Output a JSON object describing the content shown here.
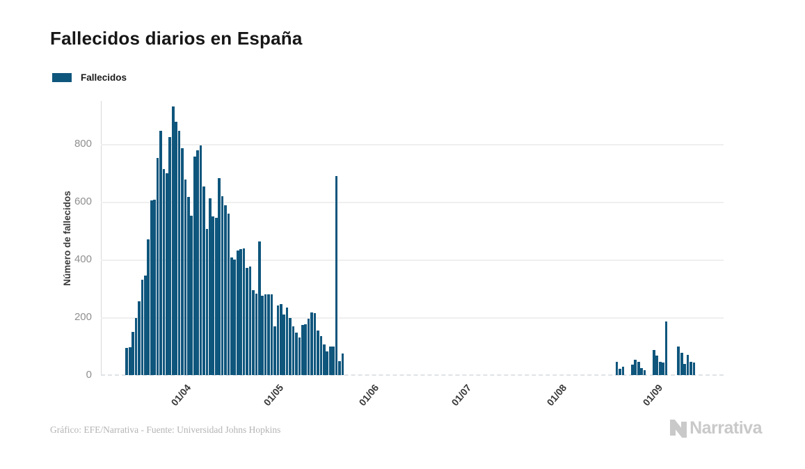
{
  "chart_data": {
    "type": "bar",
    "title": "Fallecidos diarios en España",
    "legend": [
      "Fallecidos"
    ],
    "ylabel": "Número de fallecidos",
    "xlabel": "",
    "bar_color": "#0F567D",
    "background_color": "#ffffff",
    "grid": "horizontal",
    "legend_position": "top-left",
    "ylim": [
      0,
      950
    ],
    "y_ticks": [
      0,
      200,
      400,
      600,
      800
    ],
    "x_tick_labels": [
      "01/04",
      "01/05",
      "01/06",
      "01/07",
      "01/08",
      "01/09"
    ],
    "x_ticks": [
      {
        "label": "01/04",
        "day": 23
      },
      {
        "label": "01/05",
        "day": 53
      },
      {
        "label": "01/06",
        "day": 84
      },
      {
        "label": "01/07",
        "day": 114
      },
      {
        "label": "01/08",
        "day": 145
      },
      {
        "label": "01/09",
        "day": 176
      }
    ],
    "x_axis": {
      "start_date": "09/03",
      "days_total": 202
    },
    "bars": [
      {
        "day": 8,
        "date": "17/03",
        "v": 95
      },
      {
        "day": 9,
        "date": "18/03",
        "v": 97
      },
      {
        "day": 10,
        "date": "19/03",
        "v": 150
      },
      {
        "day": 11,
        "date": "20/03",
        "v": 198
      },
      {
        "day": 12,
        "date": "21/03",
        "v": 255
      },
      {
        "day": 13,
        "date": "22/03",
        "v": 330
      },
      {
        "day": 14,
        "date": "23/03",
        "v": 345
      },
      {
        "day": 15,
        "date": "24/03",
        "v": 470
      },
      {
        "day": 16,
        "date": "25/03",
        "v": 605
      },
      {
        "day": 17,
        "date": "26/03",
        "v": 608
      },
      {
        "day": 18,
        "date": "27/03",
        "v": 753
      },
      {
        "day": 19,
        "date": "28/03",
        "v": 846
      },
      {
        "day": 20,
        "date": "29/03",
        "v": 713
      },
      {
        "day": 21,
        "date": "30/03",
        "v": 700
      },
      {
        "day": 22,
        "date": "31/03",
        "v": 825
      },
      {
        "day": 23,
        "date": "01/04",
        "v": 930
      },
      {
        "day": 24,
        "date": "02/04",
        "v": 878
      },
      {
        "day": 25,
        "date": "03/04",
        "v": 846
      },
      {
        "day": 26,
        "date": "04/04",
        "v": 786
      },
      {
        "day": 27,
        "date": "05/04",
        "v": 677
      },
      {
        "day": 28,
        "date": "06/04",
        "v": 617
      },
      {
        "day": 29,
        "date": "07/04",
        "v": 552
      },
      {
        "day": 30,
        "date": "08/04",
        "v": 758
      },
      {
        "day": 31,
        "date": "09/04",
        "v": 780
      },
      {
        "day": 32,
        "date": "10/04",
        "v": 795
      },
      {
        "day": 33,
        "date": "11/04",
        "v": 653
      },
      {
        "day": 34,
        "date": "12/04",
        "v": 506
      },
      {
        "day": 35,
        "date": "13/04",
        "v": 612
      },
      {
        "day": 36,
        "date": "14/04",
        "v": 550
      },
      {
        "day": 37,
        "date": "15/04",
        "v": 545
      },
      {
        "day": 38,
        "date": "16/04",
        "v": 682
      },
      {
        "day": 39,
        "date": "17/04",
        "v": 620
      },
      {
        "day": 40,
        "date": "18/04",
        "v": 588
      },
      {
        "day": 41,
        "date": "19/04",
        "v": 560
      },
      {
        "day": 42,
        "date": "20/04",
        "v": 407
      },
      {
        "day": 43,
        "date": "21/04",
        "v": 400
      },
      {
        "day": 44,
        "date": "22/04",
        "v": 432
      },
      {
        "day": 45,
        "date": "23/04",
        "v": 436
      },
      {
        "day": 46,
        "date": "24/04",
        "v": 440
      },
      {
        "day": 47,
        "date": "25/04",
        "v": 371
      },
      {
        "day": 48,
        "date": "26/04",
        "v": 375
      },
      {
        "day": 49,
        "date": "27/04",
        "v": 295
      },
      {
        "day": 50,
        "date": "28/04",
        "v": 283
      },
      {
        "day": 51,
        "date": "29/04",
        "v": 464
      },
      {
        "day": 52,
        "date": "30/04",
        "v": 275
      },
      {
        "day": 53,
        "date": "01/05",
        "v": 279
      },
      {
        "day": 54,
        "date": "02/05",
        "v": 279
      },
      {
        "day": 55,
        "date": "03/05",
        "v": 280
      },
      {
        "day": 56,
        "date": "04/05",
        "v": 168
      },
      {
        "day": 57,
        "date": "05/05",
        "v": 242
      },
      {
        "day": 58,
        "date": "06/05",
        "v": 245
      },
      {
        "day": 59,
        "date": "07/05",
        "v": 210
      },
      {
        "day": 60,
        "date": "08/05",
        "v": 234
      },
      {
        "day": 61,
        "date": "09/05",
        "v": 198
      },
      {
        "day": 62,
        "date": "10/05",
        "v": 170
      },
      {
        "day": 63,
        "date": "11/05",
        "v": 148
      },
      {
        "day": 64,
        "date": "12/05",
        "v": 130
      },
      {
        "day": 65,
        "date": "13/05",
        "v": 174
      },
      {
        "day": 66,
        "date": "14/05",
        "v": 176
      },
      {
        "day": 67,
        "date": "15/05",
        "v": 195
      },
      {
        "day": 68,
        "date": "16/05",
        "v": 218
      },
      {
        "day": 69,
        "date": "17/05",
        "v": 215
      },
      {
        "day": 70,
        "date": "18/05",
        "v": 155
      },
      {
        "day": 71,
        "date": "19/05",
        "v": 134
      },
      {
        "day": 72,
        "date": "20/05",
        "v": 105
      },
      {
        "day": 73,
        "date": "21/05",
        "v": 81
      },
      {
        "day": 74,
        "date": "22/05",
        "v": 100
      },
      {
        "day": 75,
        "date": "23/05",
        "v": 99
      },
      {
        "day": 76,
        "date": "24/05",
        "v": 690
      },
      {
        "day": 77,
        "date": "25/05",
        "v": 49
      },
      {
        "day": 78,
        "date": "26/05",
        "v": 75
      },
      {
        "day": 167,
        "date": "23/08",
        "v": 46
      },
      {
        "day": 168,
        "date": "24/08",
        "v": 22
      },
      {
        "day": 169,
        "date": "25/08",
        "v": 28
      },
      {
        "day": 172,
        "date": "28/08",
        "v": 36
      },
      {
        "day": 173,
        "date": "29/08",
        "v": 54
      },
      {
        "day": 174,
        "date": "30/08",
        "v": 47
      },
      {
        "day": 175,
        "date": "31/08",
        "v": 23
      },
      {
        "day": 176,
        "date": "01/09",
        "v": 18
      },
      {
        "day": 179,
        "date": "04/09",
        "v": 86
      },
      {
        "day": 180,
        "date": "05/09",
        "v": 67
      },
      {
        "day": 181,
        "date": "06/09",
        "v": 47
      },
      {
        "day": 182,
        "date": "07/09",
        "v": 44
      },
      {
        "day": 183,
        "date": "08/09",
        "v": 185
      },
      {
        "day": 187,
        "date": "12/09",
        "v": 98
      },
      {
        "day": 188,
        "date": "13/09",
        "v": 77
      },
      {
        "day": 189,
        "date": "14/09",
        "v": 39
      },
      {
        "day": 190,
        "date": "15/09",
        "v": 69
      },
      {
        "day": 191,
        "date": "16/09",
        "v": 47
      },
      {
        "day": 192,
        "date": "17/09",
        "v": 44
      }
    ]
  },
  "footer": {
    "attribution": "Gráfico: EFE/Narrativa - Fuente: Universidad Johns Hopkins",
    "brand": "Narrativa"
  }
}
